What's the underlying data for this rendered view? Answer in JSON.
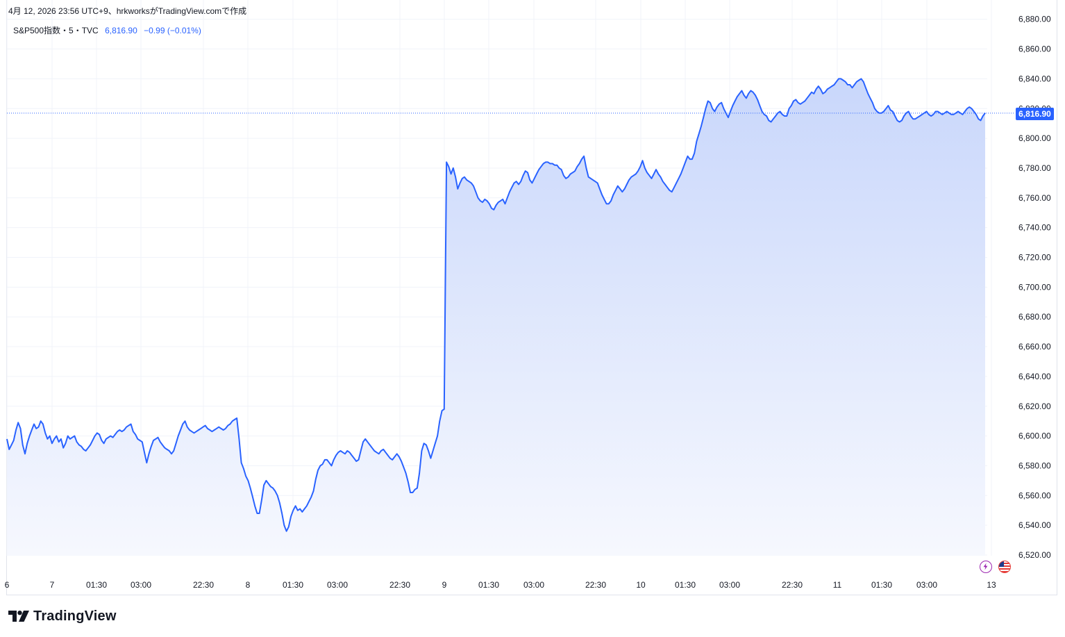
{
  "header": {
    "meta": "4月 12, 2026 23:56 UTC+9、hrkworksがTradingView.comで作成",
    "symbol": "S&P500指数・5・TVC",
    "last": "6,816.90",
    "change": "−0.99 (−0.01%)"
  },
  "price_badge": "6,816.90",
  "brand": {
    "name": "TradingView"
  },
  "icons": [
    "lightning-icon",
    "us-flag-icon"
  ],
  "colors": {
    "line": "#2962ff",
    "fill_top": "#c9d7fb",
    "fill_bottom": "#f2f5fe",
    "grid": "#f0f3fa",
    "axis_text": "#131722"
  },
  "chart_data": {
    "type": "area",
    "title": "S&P500指数・5・TVC",
    "ylim": [
      6510,
      6881
    ],
    "yticks": [
      "6,520.00",
      "6,540.00",
      "6,560.00",
      "6,580.00",
      "6,600.00",
      "6,620.00",
      "6,640.00",
      "6,660.00",
      "6,680.00",
      "6,700.00",
      "6,720.00",
      "6,740.00",
      "6,760.00",
      "6,780.00",
      "6,800.00",
      "6,820.00",
      "6,840.00",
      "6,860.00",
      "6,880.00"
    ],
    "xticks": [
      "6",
      "7",
      "01:30",
      "03:00",
      "22:30",
      "8",
      "01:30",
      "03:00",
      "22:30",
      "9",
      "01:30",
      "03:00",
      "22:30",
      "10",
      "01:30",
      "03:00",
      "22:30",
      "11",
      "01:30",
      "03:00",
      "13"
    ],
    "last_value": 6816.9,
    "grid": true,
    "series": [
      {
        "values": [
          6598,
          6591,
          6594,
          6597,
          6604,
          6609,
          6605,
          6594,
          6588,
          6595,
          6600,
          6604,
          6608,
          6605,
          6606,
          6610,
          6608,
          6602,
          6598,
          6600,
          6595,
          6598,
          6600,
          6596,
          6598,
          6592,
          6595,
          6600,
          6598,
          6599,
          6600,
          6596,
          6594,
          6593,
          6591,
          6590,
          6592,
          6594,
          6597,
          6600,
          6602,
          6601,
          6597,
          6595,
          6598,
          6599,
          6600,
          6599,
          6601,
          6603,
          6604,
          6603,
          6604,
          6606,
          6607,
          6608,
          6603,
          6601,
          6598,
          6597,
          6596,
          6589,
          6582,
          6588,
          6593,
          6597,
          6598,
          6599,
          6596,
          6594,
          6592,
          6591,
          6590,
          6588,
          6590,
          6595,
          6600,
          6604,
          6608,
          6610,
          6606,
          6604,
          6603,
          6602,
          6603,
          6604,
          6605,
          6606,
          6607,
          6605,
          6604,
          6603,
          6604,
          6605,
          6606,
          6605,
          6604,
          6605,
          6607,
          6608,
          6610,
          6611,
          6612,
          6598,
          6582,
          6578,
          6573,
          6570,
          6565,
          6559,
          6553,
          6548,
          6548,
          6557,
          6567,
          6570,
          6568,
          6566,
          6565,
          6563,
          6560,
          6555,
          6548,
          6540,
          6536,
          6539,
          6546,
          6550,
          6553,
          6550,
          6551,
          6549,
          6551,
          6553,
          6556,
          6559,
          6563,
          6571,
          6577,
          6580,
          6581,
          6584,
          6584,
          6582,
          6580,
          6584,
          6587,
          6589,
          6590,
          6589,
          6588,
          6590,
          6589,
          6587,
          6585,
          6583,
          6584,
          6590,
          6596,
          6598,
          6596,
          6594,
          6592,
          6590,
          6589,
          6588,
          6590,
          6591,
          6589,
          6587,
          6585,
          6584,
          6586,
          6588,
          6586,
          6583,
          6579,
          6575,
          6569,
          6562,
          6562,
          6564,
          6565,
          6575,
          6590,
          6595,
          6594,
          6590,
          6585,
          6590,
          6595,
          6600,
          6610,
          6617,
          6618,
          6784,
          6781,
          6776,
          6780,
          6774,
          6766,
          6770,
          6773,
          6774,
          6772,
          6771,
          6770,
          6768,
          6764,
          6760,
          6758,
          6757,
          6759,
          6758,
          6756,
          6753,
          6752,
          6755,
          6757,
          6758,
          6759,
          6756,
          6760,
          6764,
          6767,
          6770,
          6771,
          6769,
          6771,
          6775,
          6778,
          6777,
          6772,
          6770,
          6773,
          6776,
          6779,
          6781,
          6783,
          6784,
          6784,
          6783,
          6783,
          6782,
          6782,
          6780,
          6779,
          6775,
          6773,
          6774,
          6776,
          6777,
          6778,
          6781,
          6783,
          6786,
          6788,
          6780,
          6774,
          6773,
          6772,
          6771,
          6770,
          6766,
          6762,
          6759,
          6756,
          6756,
          6758,
          6762,
          6765,
          6768,
          6766,
          6764,
          6766,
          6769,
          6772,
          6774,
          6775,
          6776,
          6778,
          6781,
          6785,
          6780,
          6777,
          6775,
          6773,
          6776,
          6779,
          6776,
          6774,
          6771,
          6769,
          6767,
          6765,
          6764,
          6767,
          6770,
          6773,
          6776,
          6780,
          6784,
          6788,
          6786,
          6786,
          6790,
          6798,
          6803,
          6808,
          6814,
          6820,
          6825,
          6824,
          6820,
          6818,
          6821,
          6823,
          6824,
          6820,
          6817,
          6814,
          6818,
          6822,
          6825,
          6828,
          6830,
          6832,
          6829,
          6827,
          6830,
          6832,
          6831,
          6829,
          6826,
          6822,
          6818,
          6816,
          6815,
          6812,
          6811,
          6813,
          6815,
          6817,
          6818,
          6816,
          6815,
          6815,
          6820,
          6822,
          6825,
          6826,
          6824,
          6823,
          6824,
          6825,
          6827,
          6829,
          6831,
          6830,
          6833,
          6835,
          6833,
          6830,
          6831,
          6833,
          6834,
          6835,
          6836,
          6838,
          6840,
          6840,
          6839,
          6838,
          6836,
          6836,
          6834,
          6836,
          6838,
          6839,
          6840,
          6838,
          6834,
          6830,
          6827,
          6824,
          6820,
          6818,
          6817,
          6817,
          6818,
          6820,
          6822,
          6819,
          6818,
          6815,
          6812,
          6811,
          6812,
          6815,
          6817,
          6818,
          6815,
          6813,
          6813,
          6814,
          6815,
          6816,
          6817,
          6818,
          6816,
          6815,
          6816,
          6818,
          6818,
          6817,
          6816,
          6817,
          6818,
          6817,
          6816,
          6816,
          6817,
          6818,
          6817,
          6816,
          6818,
          6820,
          6821,
          6820,
          6818,
          6816,
          6813,
          6812,
          6815,
          6817
        ]
      }
    ]
  }
}
